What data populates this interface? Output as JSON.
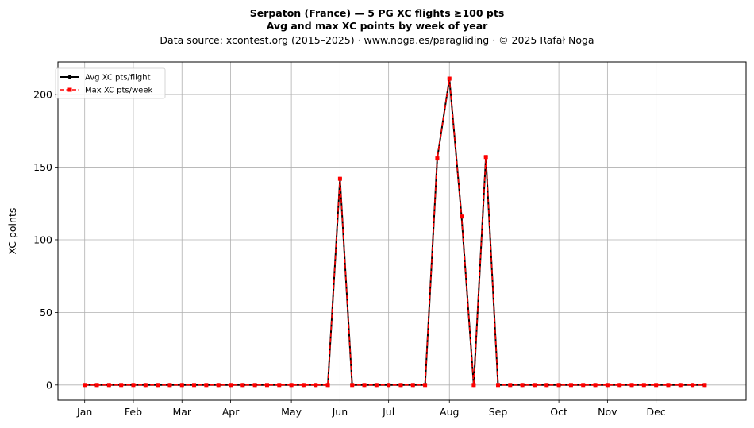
{
  "chart_data": {
    "type": "line",
    "title": "Serpaton (France)  —  5 PG XC flights ≥100 pts",
    "subtitle": "Avg and max XC points by week of year",
    "source_line": "Data source: xcontest.org (2015–2025)  ·  www.noga.es/paragliding  ·  © 2025 Rafał Noga",
    "xlabel": "",
    "ylabel": "XC points",
    "x": [
      1,
      2,
      3,
      4,
      5,
      6,
      7,
      8,
      9,
      10,
      11,
      12,
      13,
      14,
      15,
      16,
      17,
      18,
      19,
      20,
      21,
      22,
      23,
      24,
      25,
      26,
      27,
      28,
      29,
      30,
      31,
      32,
      33,
      34,
      35,
      36,
      37,
      38,
      39,
      40,
      41,
      42,
      43,
      44,
      45,
      46,
      47,
      48,
      49,
      50,
      51,
      52
    ],
    "xlim": [
      -1.2,
      55.4
    ],
    "ylim": [
      -10.5,
      222.5
    ],
    "x_ticks": [
      {
        "x": 1,
        "label": "Jan"
      },
      {
        "x": 5,
        "label": "Feb"
      },
      {
        "x": 9,
        "label": "Mar"
      },
      {
        "x": 13,
        "label": "Apr"
      },
      {
        "x": 18,
        "label": "May"
      },
      {
        "x": 22,
        "label": "Jun"
      },
      {
        "x": 26,
        "label": "Jul"
      },
      {
        "x": 31,
        "label": "Aug"
      },
      {
        "x": 35,
        "label": "Sep"
      },
      {
        "x": 40,
        "label": "Oct"
      },
      {
        "x": 44,
        "label": "Nov"
      },
      {
        "x": 48,
        "label": "Dec"
      }
    ],
    "y_ticks": [
      0,
      50,
      100,
      150,
      200
    ],
    "grid": true,
    "legend_placement": "top-left",
    "series": [
      {
        "name": "Avg XC pts/flight",
        "color": "#000000",
        "style": "solid",
        "marker": "circle",
        "values": [
          0,
          0,
          0,
          0,
          0,
          0,
          0,
          0,
          0,
          0,
          0,
          0,
          0,
          0,
          0,
          0,
          0,
          0,
          0,
          0,
          0,
          142,
          0,
          0,
          0,
          0,
          0,
          0,
          0,
          156,
          211,
          116,
          0,
          157,
          0,
          0,
          0,
          0,
          0,
          0,
          0,
          0,
          0,
          0,
          0,
          0,
          0,
          0,
          0,
          0,
          0,
          0
        ]
      },
      {
        "name": "Max XC pts/week",
        "color": "#ff0000",
        "style": "dashed",
        "marker": "square",
        "values": [
          0,
          0,
          0,
          0,
          0,
          0,
          0,
          0,
          0,
          0,
          0,
          0,
          0,
          0,
          0,
          0,
          0,
          0,
          0,
          0,
          0,
          142,
          0,
          0,
          0,
          0,
          0,
          0,
          0,
          156,
          211,
          116,
          0,
          157,
          0,
          0,
          0,
          0,
          0,
          0,
          0,
          0,
          0,
          0,
          0,
          0,
          0,
          0,
          0,
          0,
          0,
          0
        ]
      }
    ]
  }
}
